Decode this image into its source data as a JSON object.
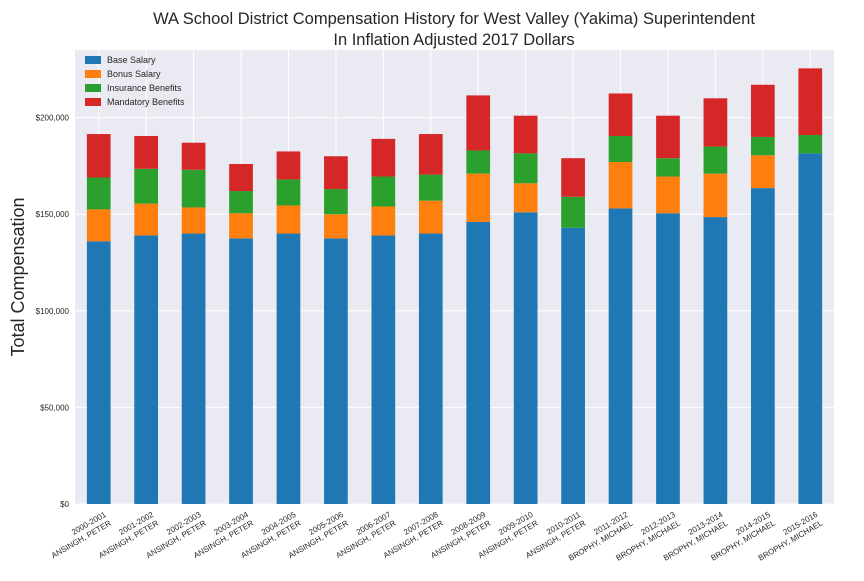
{
  "chart_data": {
    "type": "bar",
    "stacked": true,
    "title": "WA School District Compensation History for West Valley (Yakima) Superintendent",
    "subtitle": "In Inflation Adjusted 2017 Dollars",
    "ylabel": "Total Compensation",
    "xlabel": "",
    "ylim": [
      0,
      235000
    ],
    "yticks": [
      0,
      50000,
      100000,
      150000,
      200000
    ],
    "ytick_labels": [
      "$0",
      "$50,000",
      "$100,000",
      "$150,000",
      "$200,000"
    ],
    "grid": true,
    "legend_position": "top-left",
    "categories": [
      [
        "2000-2001",
        "ANSINGH, PETER"
      ],
      [
        "2001-2002",
        "ANSINGH, PETER"
      ],
      [
        "2002-2003",
        "ANSINGH, PETER"
      ],
      [
        "2003-2004",
        "ANSINGH, PETER"
      ],
      [
        "2004-2005",
        "ANSINGH, PETER"
      ],
      [
        "2005-2006",
        "ANSINGH, PETER"
      ],
      [
        "2006-2007",
        "ANSINGH, PETER"
      ],
      [
        "2007-2008",
        "ANSINGH, PETER"
      ],
      [
        "2008-2009",
        "ANSINGH, PETER"
      ],
      [
        "2009-2010",
        "ANSINGH, PETER"
      ],
      [
        "2010-2011",
        "ANSINGH, PETER"
      ],
      [
        "2011-2012",
        "BROPHY, MICHAEL"
      ],
      [
        "2012-2013",
        "BROPHY, MICHAEL"
      ],
      [
        "2013-2014",
        "BROPHY, MICHAEL"
      ],
      [
        "2014-2015",
        "BROPHY, MICHAEL"
      ],
      [
        "2015-2016",
        "BROPHY, MICHAEL"
      ]
    ],
    "series": [
      {
        "name": "Base Salary",
        "color": "#1f77b4",
        "values": [
          136000,
          139000,
          140000,
          137500,
          140000,
          137500,
          139000,
          140000,
          146000,
          151000,
          143000,
          153000,
          150500,
          148500,
          163500,
          181500
        ]
      },
      {
        "name": "Bonus Salary",
        "color": "#ff7f0e",
        "values": [
          16500,
          16500,
          13500,
          13000,
          14500,
          12500,
          15000,
          17000,
          25000,
          15000,
          0,
          24000,
          19000,
          22500,
          17000,
          0
        ]
      },
      {
        "name": "Insurance Benefits",
        "color": "#2ca02c",
        "values": [
          16500,
          18000,
          19500,
          11500,
          13500,
          13000,
          15500,
          13500,
          12000,
          15500,
          16000,
          13500,
          9500,
          14000,
          9500,
          9500
        ]
      },
      {
        "name": "Mandatory Benefits",
        "color": "#d62728",
        "values": [
          22500,
          17000,
          14000,
          14000,
          14500,
          17000,
          19500,
          21000,
          28500,
          19500,
          20000,
          22000,
          22000,
          25000,
          27000,
          34500
        ]
      }
    ]
  }
}
